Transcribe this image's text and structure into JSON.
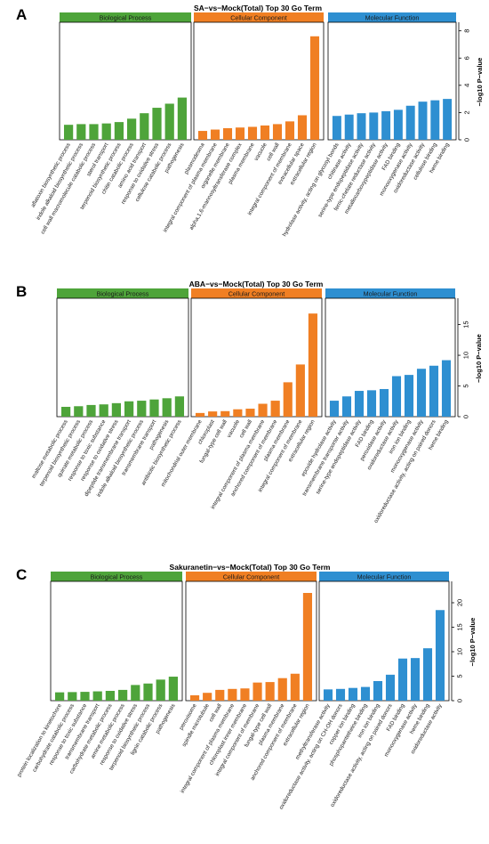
{
  "colors": {
    "bp": "#4ea43a",
    "cc": "#f07f23",
    "mf": "#2e8fd1",
    "header_text": "#1a1a1a",
    "axis": "#000000"
  },
  "chart_data": [
    {
      "type": "bar",
      "panel_label": "A",
      "title": "SA−vs−Mock(Total) Top 30 Go Term",
      "ylabel": "−log10 P−value",
      "ylim": [
        0,
        8.5
      ],
      "yticks": [
        0,
        2,
        4,
        6,
        8
      ],
      "y_axis_side": "right",
      "groups": [
        {
          "name": "Biological Process",
          "color_key": "bp",
          "categories": [
            "aflatoxin biosynthetic process",
            "indole alkaloid biosynthetic process",
            "cell wall macromolecule catabolic process",
            "sterol transport",
            "terpenoid biosynthetic process",
            "chitin catabolic process",
            "amino acid transport",
            "response to oxidative stress",
            "cellulose catabolic process",
            "pathogenesis"
          ],
          "values": [
            1.1,
            1.15,
            1.15,
            1.2,
            1.3,
            1.55,
            1.95,
            2.35,
            2.65,
            3.1
          ]
        },
        {
          "name": "Cellular Component",
          "color_key": "cc",
          "categories": [
            "plasmodesma",
            "integral component of plasma membrane",
            "organelle membrane",
            "alpha,1,6-mannosyltransferase complex",
            "plasma membrane",
            "vacuole",
            "cell wall",
            "integral component of membrane",
            "extracellular space",
            "extracellular region"
          ],
          "values": [
            0.65,
            0.75,
            0.85,
            0.9,
            0.95,
            1.05,
            1.15,
            1.35,
            1.8,
            7.6
          ]
        },
        {
          "name": "Molecular Function",
          "color_key": "mf",
          "categories": [
            "hydrolase activity, acting on glycosyl bonds",
            "chitinase activity",
            "serine-type endopeptidase activity",
            "ferric-chelate reductase activity",
            "metallocarboxypeptidase activity",
            "FAD binding",
            "monooxygenase activity",
            "oxidoreductase activity",
            "cellulose binding",
            "heme binding"
          ],
          "values": [
            1.75,
            1.85,
            1.95,
            2.0,
            2.1,
            2.2,
            2.5,
            2.8,
            2.9,
            3.0
          ]
        }
      ]
    },
    {
      "type": "bar",
      "panel_label": "B",
      "title": "ABA−vs−Mock(Total) Top 30 Go Term",
      "ylabel": "−log10 P−value",
      "ylim": [
        0,
        19
      ],
      "yticks": [
        0,
        5,
        10,
        15
      ],
      "y_axis_side": "right",
      "groups": [
        {
          "name": "Biological Process",
          "color_key": "bp",
          "categories": [
            "maltose metabolic process",
            "terpenoid biosynthetic process",
            "quinate metabolic process",
            "response to toxic substance",
            "response to oxidative stress",
            "dipeptide transmembrane transport",
            "indole alkaloid biosynthetic process",
            "transmembrane transport",
            "pathogenesis",
            "antibiotic biosynthetic process"
          ],
          "values": [
            1.6,
            1.7,
            1.9,
            2.0,
            2.2,
            2.5,
            2.6,
            2.8,
            3.0,
            3.3
          ]
        },
        {
          "name": "Cellular Component",
          "color_key": "cc",
          "categories": [
            "mitochondrial outer membrane",
            "chloroplast",
            "fungal-type cell wall",
            "vacuole",
            "cell wall",
            "integral component of plasma membrane",
            "anchored component of membrane",
            "plasma membrane",
            "integral component of membrane",
            "extracellular region"
          ],
          "values": [
            0.6,
            0.85,
            0.9,
            1.2,
            1.3,
            2.1,
            2.6,
            5.6,
            8.5,
            16.8
          ]
        },
        {
          "name": "Molecular Function",
          "color_key": "mf",
          "categories": [
            "epoxide hydrolase activity",
            "transmembrane transporter activity",
            "serine-type endopeptidase activity",
            "FAD binding",
            "peroxidase activity",
            "oxidoreductase activity",
            "iron ion binding",
            "monooxygenase activity",
            "oxidoreductase activity, acting on paired donors",
            "heme binding"
          ],
          "values": [
            2.6,
            3.3,
            4.2,
            4.3,
            4.5,
            6.6,
            6.8,
            7.8,
            8.3,
            9.2
          ]
        }
      ]
    },
    {
      "type": "bar",
      "panel_label": "C",
      "title": "Sakuranetin−vs−Mock(Total) Top 30 Go Term",
      "ylabel": "−log10 P−value",
      "ylim": [
        0,
        24
      ],
      "yticks": [
        0,
        5,
        10,
        15,
        20
      ],
      "y_axis_side": "right",
      "groups": [
        {
          "name": "Biological Process",
          "color_key": "bp",
          "categories": [
            "protein localization to kinetochore",
            "carbohydrate catabolic process",
            "response to toxic substance",
            "transmembrane transport",
            "carbohydrate metabolic process",
            "amine metabolic process",
            "response to oxidative stress",
            "terpenoid biosynthetic process",
            "lignin catabolic process",
            "pathogenesis"
          ],
          "values": [
            1.7,
            1.75,
            1.8,
            1.9,
            2.0,
            2.2,
            3.2,
            3.5,
            4.3,
            4.9
          ]
        },
        {
          "name": "Cellular Component",
          "color_key": "cc",
          "categories": [
            "peroxisome",
            "spindle microtubule",
            "cell wall",
            "integral component of plasma membrane",
            "chloroplast inner membrane",
            "integral component of membrane",
            "fungal-type cell wall",
            "plasma membrane",
            "anchored component of membrane",
            "extracellular region"
          ],
          "values": [
            1.1,
            1.6,
            2.2,
            2.4,
            2.5,
            3.7,
            3.8,
            4.6,
            5.5,
            22.0
          ]
        },
        {
          "name": "Molecular Function",
          "color_key": "mf",
          "categories": [
            "methyltransferase activity",
            "oxidoreductase activity, acting on CH-OH donors",
            "copper ion binding",
            "phosphopantetheine binding",
            "iron ion binding",
            "oxidoreductase activity, acting on paired donors",
            "FAD binding",
            "monooxygenase activity",
            "heme binding",
            "oxidoreductase activity"
          ],
          "values": [
            2.3,
            2.4,
            2.6,
            2.8,
            4.0,
            5.3,
            8.6,
            8.7,
            10.7,
            18.5
          ]
        }
      ]
    }
  ]
}
